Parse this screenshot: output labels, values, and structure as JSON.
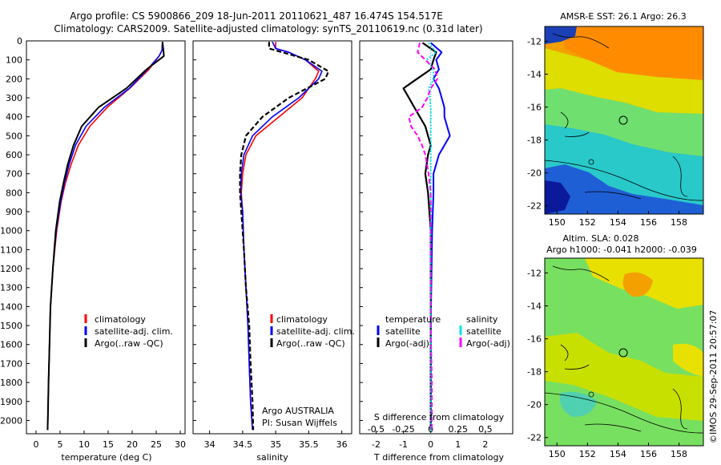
{
  "header": {
    "line1": "Argo profile: CS 5900866_209 18-Jun-2011 20110621_487 16.474S 154.517E",
    "line2": "Climatology: CARS2009. Satellite-adjusted climatology: synTS_20110619.nc (0.31d later)"
  },
  "colors": {
    "climatology": "#ff0000",
    "satellite": "#0000ff",
    "argo": "#000000",
    "sat_salinity": "#00e5ee",
    "argo_salinity": "#ff00ff"
  },
  "side_labels": {
    "timestamp": "©IMOS 29-Sep-2011 20:57:07"
  },
  "chart_data": [
    {
      "type": "line",
      "name": "temperature-profile",
      "xlabel": "temperature (deg C)",
      "xlim": [
        -2,
        31
      ],
      "ylim": [
        0,
        2070
      ],
      "x_ticks": [
        "0",
        "5",
        "10",
        "15",
        "20",
        "25",
        "30"
      ],
      "y_ticks": [
        "0",
        "100",
        "200",
        "300",
        "400",
        "500",
        "600",
        "700",
        "800",
        "900",
        "1000",
        "1100",
        "1200",
        "1300",
        "1400",
        "1500",
        "1600",
        "1700",
        "1800",
        "1900",
        "2000"
      ],
      "legend": [
        "climatology",
        "satellite-adj. clim.",
        "Argo(..raw -QC)"
      ],
      "depth": [
        5,
        50,
        80,
        150,
        250,
        350,
        450,
        550,
        650,
        750,
        850,
        1000,
        1200,
        1400,
        1600,
        1800,
        2000,
        2050
      ],
      "series": [
        {
          "name": "climatology",
          "values": [
            26.3,
            26.2,
            25.6,
            23.5,
            19.5,
            14.8,
            11.2,
            8.8,
            7.3,
            6.1,
            5.2,
            4.3,
            3.5,
            3.0,
            2.8,
            2.6,
            2.45,
            2.4
          ]
        },
        {
          "name": "satellite-adj. clim.",
          "values": [
            26.3,
            26.2,
            25.6,
            23.2,
            19.4,
            14.2,
            10.4,
            8.2,
            6.9,
            5.9,
            5.1,
            4.2,
            3.5,
            3.0,
            2.8,
            2.6,
            2.45,
            2.4
          ]
        },
        {
          "name": "Argo(..raw -QC)",
          "values": [
            26.3,
            26.5,
            26.6,
            23.0,
            18.8,
            13.0,
            9.5,
            7.8,
            6.6,
            5.7,
            4.9,
            4.1,
            3.5,
            3.0,
            2.8,
            2.6,
            2.45,
            2.4
          ]
        }
      ]
    },
    {
      "type": "line",
      "name": "salinity-profile",
      "xlabel": "salinity",
      "xlim": [
        33.75,
        36.15
      ],
      "ylim": [
        0,
        2070
      ],
      "x_ticks": [
        "34",
        "34.5",
        "35",
        "35.5",
        "36"
      ],
      "legend": [
        "climatology",
        "satellite-adj. clim.",
        "Argo(..raw -QC)"
      ],
      "annotation": [
        "Argo AUSTRALIA",
        "PI: Susan Wijffels"
      ],
      "depth": [
        5,
        40,
        60,
        100,
        160,
        200,
        300,
        400,
        500,
        600,
        700,
        800,
        900,
        1100,
        1300,
        1500,
        1700,
        1900,
        2050
      ],
      "series": [
        {
          "name": "climatology",
          "values": [
            35.0,
            35.0,
            35.2,
            35.45,
            35.65,
            35.6,
            35.4,
            35.05,
            34.7,
            34.55,
            34.5,
            34.48,
            34.5,
            34.52,
            34.55,
            34.58,
            34.6,
            34.62,
            34.65
          ]
        },
        {
          "name": "satellite-adj. clim.",
          "values": [
            34.95,
            35.0,
            35.2,
            35.45,
            35.7,
            35.65,
            35.35,
            34.95,
            34.65,
            34.52,
            34.48,
            34.47,
            34.5,
            34.52,
            34.55,
            34.58,
            34.6,
            34.62,
            34.65
          ]
        },
        {
          "name": "Argo(..raw -QC)",
          "values": [
            34.9,
            34.9,
            35.1,
            35.5,
            35.8,
            35.75,
            35.2,
            34.8,
            34.55,
            34.48,
            34.46,
            34.46,
            34.48,
            34.52,
            34.55,
            34.6,
            34.62,
            34.65,
            34.66
          ]
        }
      ]
    },
    {
      "type": "line",
      "name": "difference-profile",
      "xlabel": "T difference from climatology",
      "xlabel_top": "S difference from climatology",
      "xlim": [
        -2.6,
        3.0
      ],
      "ylim": [
        0,
        2070
      ],
      "x_ticks": [
        "-2",
        "-1",
        "0",
        "1",
        "2"
      ],
      "x_ticks_top": [
        "-0.5",
        "-0.25",
        "0",
        "0.25",
        "0.5"
      ],
      "legend_t": {
        "title": "temperature",
        "items": [
          "satellite",
          "Argo(-adj)"
        ]
      },
      "legend_s": {
        "title": "salinity",
        "items": [
          "satellite",
          "Argo(-adj)"
        ]
      },
      "depth": [
        10,
        60,
        100,
        150,
        200,
        250,
        300,
        350,
        400,
        450,
        500,
        550,
        600,
        700,
        800,
        1000,
        1500,
        1800,
        2000,
        2050
      ],
      "series": [
        {
          "name": "T satellite",
          "values": [
            0.0,
            0.4,
            0.2,
            0.3,
            0.1,
            0.3,
            0.4,
            0.5,
            0.5,
            0.6,
            0.7,
            0.5,
            0.3,
            0.1,
            0.1,
            0.05,
            0.0,
            0.0,
            0.0,
            0.0
          ]
        },
        {
          "name": "T Argo(-adj)",
          "values": [
            -0.3,
            0.2,
            0.1,
            0.0,
            -0.5,
            -1.0,
            -0.8,
            -0.6,
            -0.4,
            -0.2,
            -0.1,
            0.0,
            -0.1,
            -0.2,
            -0.1,
            0.0,
            0.0,
            0.0,
            0.0,
            0.0
          ]
        },
        {
          "name": "S satellite",
          "values": [
            -0.02,
            0.05,
            -0.04,
            0.02,
            0.03,
            -0.02,
            -0.01,
            0.0,
            0.0,
            0.0,
            0.0,
            0.0,
            0.0,
            0.0,
            0.0,
            0.0,
            0.0,
            0.0,
            0.0,
            0.0
          ]
        },
        {
          "name": "S Argo(-adj)",
          "values": [
            -0.1,
            -0.12,
            -0.05,
            0.04,
            0.06,
            0.0,
            -0.03,
            -0.08,
            -0.2,
            -0.18,
            -0.12,
            -0.08,
            -0.05,
            -0.02,
            0.0,
            0.0,
            0.0,
            0.01,
            0.01,
            0.01
          ]
        }
      ]
    },
    {
      "type": "heatmap",
      "name": "sst-map",
      "title": "AMSR-E SST: 26.1  Argo: 26.3",
      "x_ticks": [
        "150",
        "152",
        "154",
        "156",
        "158"
      ],
      "y_ticks": [
        "-12",
        "-14",
        "-16",
        "-18",
        "-20",
        "-22"
      ],
      "xlim": [
        149.2,
        159.6
      ],
      "ylim": [
        -22.5,
        -11.1
      ],
      "argo_position": {
        "lon": 154.517,
        "lat": -16.474
      }
    },
    {
      "type": "heatmap",
      "name": "sla-map",
      "title_lines": [
        "Altim. SLA: 0.028",
        "Argo h1000: -0.041 h2000: -0.039"
      ],
      "x_ticks": [
        "150",
        "152",
        "154",
        "156",
        "158"
      ],
      "y_ticks": [
        "-12",
        "-14",
        "-16",
        "-18",
        "-20",
        "-22"
      ],
      "xlim": [
        149.2,
        159.6
      ],
      "ylim": [
        -22.5,
        -11.1
      ],
      "argo_position": {
        "lon": 154.517,
        "lat": -16.474
      }
    }
  ]
}
